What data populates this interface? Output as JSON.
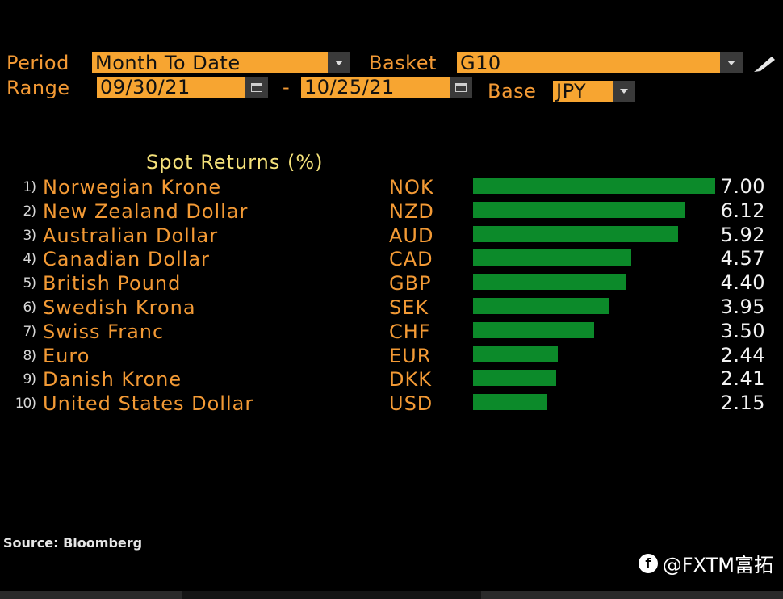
{
  "controls": {
    "period_label": "Period",
    "period_value": "Month To Date",
    "basket_label": "Basket",
    "basket_value": "G10",
    "range_label": "Range",
    "range_start": "09/30/21",
    "range_sep": "-",
    "range_end": "10/25/21",
    "base_label": "Base",
    "base_value": "JPY"
  },
  "chart_title": "Spot Returns (%)",
  "chart_data": {
    "type": "bar",
    "title": "Spot Returns (%)",
    "orientation": "horizontal",
    "categories": [
      "Norwegian Krone",
      "New Zealand Dollar",
      "Australian Dollar",
      "Canadian Dollar",
      "British Pound",
      "Swedish Krona",
      "Swiss Franc",
      "Euro",
      "Danish Krone",
      "United States Dollar"
    ],
    "codes": [
      "NOK",
      "NZD",
      "AUD",
      "CAD",
      "GBP",
      "SEK",
      "CHF",
      "EUR",
      "DKK",
      "USD"
    ],
    "ranks": [
      "1)",
      "2)",
      "3)",
      "4)",
      "5)",
      "6)",
      "7)",
      "8)",
      "9)",
      "10)"
    ],
    "values": [
      7.0,
      6.12,
      5.92,
      4.57,
      4.4,
      3.95,
      3.5,
      2.44,
      2.41,
      2.15
    ],
    "value_labels": [
      "7.00",
      "6.12",
      "5.92",
      "4.57",
      "4.40",
      "3.95",
      "3.50",
      "2.44",
      "2.41",
      "2.15"
    ],
    "bar_color": "#0c8a2a"
  },
  "source": "Source: Bloomberg",
  "watermark": "@FXTM富拓",
  "colors": {
    "label": "#f39a35",
    "field": "#f7a531",
    "title": "#f5e27a",
    "value": "#f2f2f2"
  }
}
